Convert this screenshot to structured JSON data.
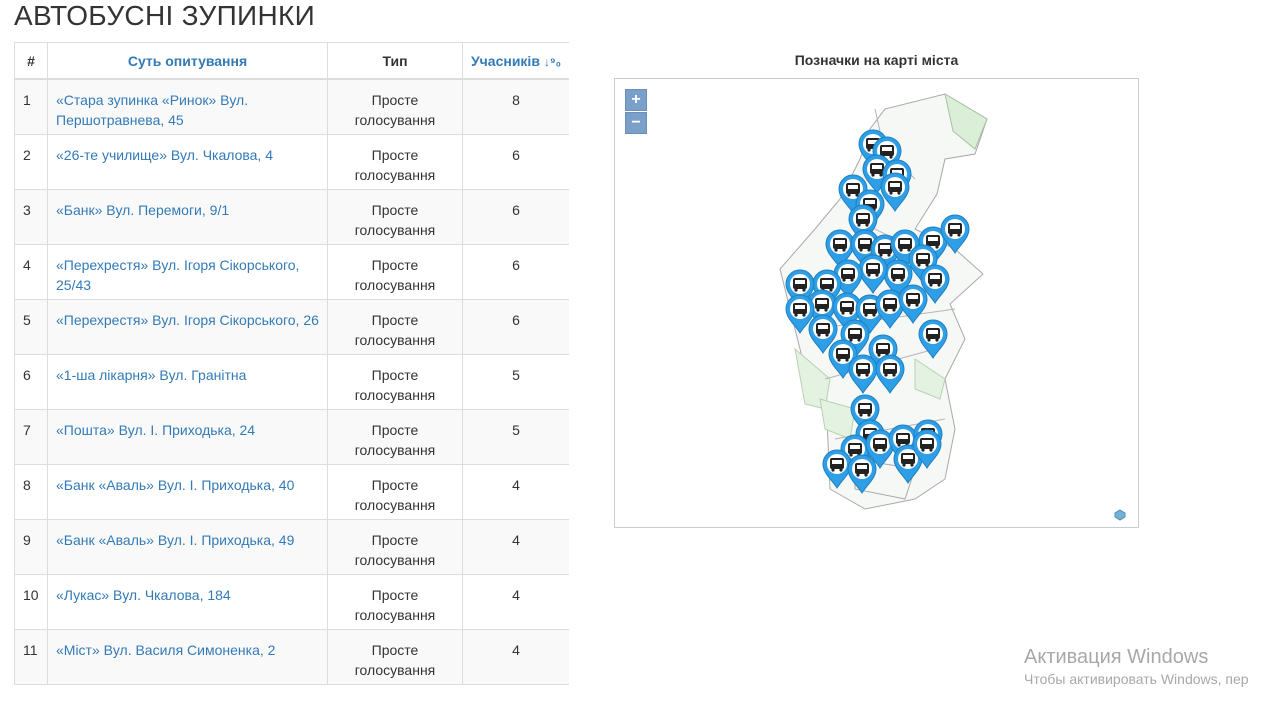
{
  "page": {
    "title": "АВТОБУСНІ ЗУПИНКИ"
  },
  "table": {
    "headers": {
      "num": "#",
      "subject": "Суть опитування",
      "type": "Тип",
      "count": "Учасників"
    },
    "sort_icon": "sort-numeric-desc-icon",
    "rows": [
      {
        "num": "1",
        "subject": "«Стара зупинка «Ринок» Вул. Першотравнева, 45",
        "type": "Просте голосування",
        "count": "8"
      },
      {
        "num": "2",
        "subject": "«26-те училище» Вул. Чкалова, 4",
        "type": "Просте голосування",
        "count": "6"
      },
      {
        "num": "3",
        "subject": "«Банк» Вул. Перемоги, 9/1",
        "type": "Просте голосування",
        "count": "6"
      },
      {
        "num": "4",
        "subject": "«Перехрестя» Вул. Ігоря Сікорського, 25/43",
        "type": "Просте голосування",
        "count": "6"
      },
      {
        "num": "5",
        "subject": "«Перехрестя» Вул. Ігоря Сікорського, 26",
        "type": "Просте голосування",
        "count": "6"
      },
      {
        "num": "6",
        "subject": "«1-ша лікарня» Вул. Гранітна",
        "type": "Просте голосування",
        "count": "5"
      },
      {
        "num": "7",
        "subject": "«Пошта» Вул. І. Приходька, 24",
        "type": "Просте голосування",
        "count": "5"
      },
      {
        "num": "8",
        "subject": "«Банк «Аваль» Вул. І. Приходька, 40",
        "type": "Просте голосування",
        "count": "4"
      },
      {
        "num": "9",
        "subject": "«Банк «Аваль» Вул. І. Приходька, 49",
        "type": "Просте голосування",
        "count": "4"
      },
      {
        "num": "10",
        "subject": "«Лукас» Вул. Чкалова, 184",
        "type": "Просте голосування",
        "count": "4"
      },
      {
        "num": "11",
        "subject": "«Міст» Вул. Василя Симоненка, 2",
        "type": "Просте голосування",
        "count": "4"
      }
    ]
  },
  "map": {
    "title": "Позначки на карті міста",
    "zoom_in": "+",
    "zoom_out": "−",
    "marker_icon": "bus-marker-icon",
    "marker_color": "#2e9fe6"
  },
  "watermark": {
    "line1": "Активация Windows",
    "line2": "Чтобы активировать Windows, пер"
  }
}
